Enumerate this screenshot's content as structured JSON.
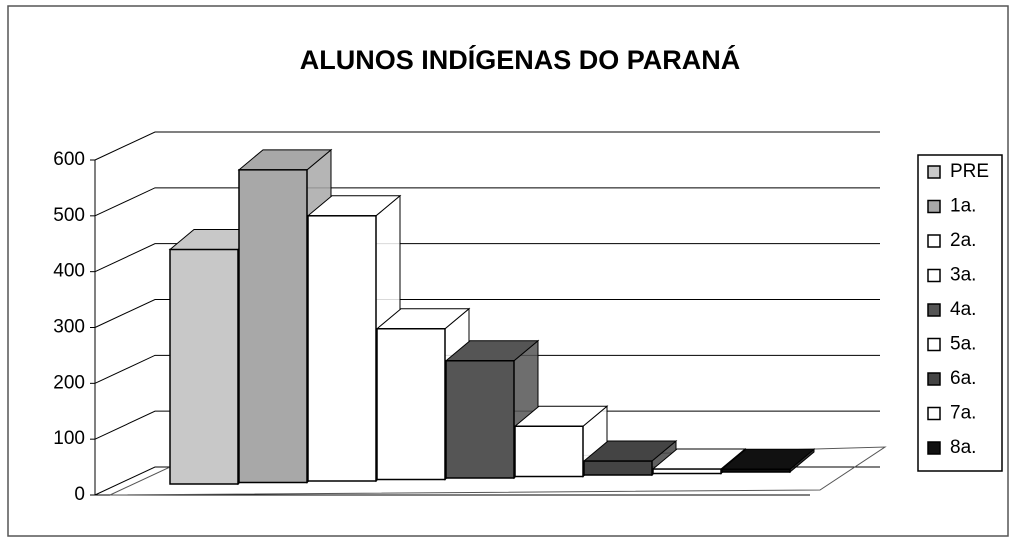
{
  "chart_data": {
    "type": "bar",
    "title": "ALUNOS INDÍGENAS DO PARANÁ",
    "categories": [
      null
    ],
    "series": [
      {
        "name": "PRE",
        "color": "#c8c8c8",
        "values": [
          420
        ]
      },
      {
        "name": "1a.",
        "color": "#a8a8a8",
        "values": [
          560
        ]
      },
      {
        "name": "2a.",
        "color": "#ffffff",
        "values": [
          475
        ]
      },
      {
        "name": "3a.",
        "color": "#ffffff",
        "values": [
          270
        ]
      },
      {
        "name": "4a.",
        "color": "#555555",
        "values": [
          210
        ]
      },
      {
        "name": "5a.",
        "color": "#ffffff",
        "values": [
          90
        ]
      },
      {
        "name": "6a.",
        "color": "#444444",
        "values": [
          25
        ]
      },
      {
        "name": "7a.",
        "color": "#ffffff",
        "values": [
          8
        ]
      },
      {
        "name": "8a.",
        "color": "#111111",
        "values": [
          5
        ]
      }
    ],
    "ylim": [
      0,
      600
    ],
    "yticks": [
      0,
      100,
      200,
      300,
      400,
      500,
      600
    ],
    "grid": true,
    "legend": "right"
  }
}
